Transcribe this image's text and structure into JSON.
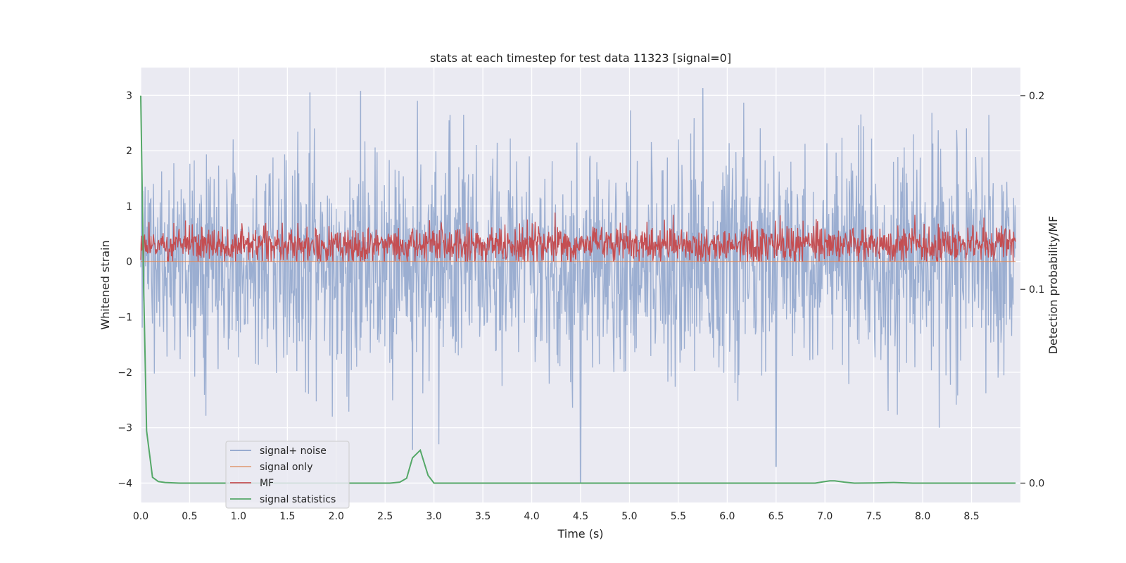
{
  "chart_data": {
    "type": "line",
    "title": "stats at each timestep for test data 11323 [signal=0]",
    "xlabel": "Time (s)",
    "ylabel": "Whitened strain",
    "y2label": "Detection probability/MF",
    "xlim": [
      0.0,
      9.0
    ],
    "ylim": [
      -4.35,
      3.5
    ],
    "y2lim": [
      -0.01,
      0.2145
    ],
    "xticks": [
      "0.0",
      "0.5",
      "1.0",
      "1.5",
      "2.0",
      "2.5",
      "3.0",
      "3.5",
      "4.0",
      "4.5",
      "5.0",
      "5.5",
      "6.0",
      "6.5",
      "7.0",
      "7.5",
      "8.0",
      "8.5"
    ],
    "yticks": [
      "3",
      "2",
      "1",
      "0",
      "−1",
      "−2",
      "−3",
      "−4"
    ],
    "y2ticks": [
      "0.2",
      "0.1",
      "0.0"
    ],
    "grid": true,
    "legend_position": "lower-left",
    "background": "#eaeaf2",
    "series": [
      {
        "name": "signal+ noise",
        "axis": "left",
        "color": "#4c72b0",
        "opacity": 0.5,
        "description_values": {
          "approx_envelope": [
            -2.2,
            2.2
          ],
          "notable_points": [
            [
              1.73,
              3.05
            ],
            [
              2.25,
              3.08
            ],
            [
              5.75,
              3.13
            ],
            [
              4.5,
              -4.0
            ],
            [
              6.5,
              -3.7
            ],
            [
              2.78,
              -3.4
            ],
            [
              3.05,
              -3.3
            ],
            [
              8.17,
              -3.0
            ],
            [
              1.96,
              -2.8
            ]
          ]
        }
      },
      {
        "name": "signal only",
        "axis": "left",
        "color": "#dd8452",
        "values_constant": 0.0
      },
      {
        "name": "MF",
        "axis": "left",
        "color": "#c44e52",
        "description_values": {
          "approx_range": [
            0.0,
            0.9
          ],
          "approx_mean": 0.3
        }
      },
      {
        "name": "signal statistics",
        "axis": "right",
        "color": "#55a868",
        "x": [
          0.0,
          0.03,
          0.06,
          0.12,
          0.18,
          0.25,
          0.4,
          1.0,
          2.0,
          2.55,
          2.65,
          2.72,
          2.78,
          2.86,
          2.94,
          3.0,
          3.1,
          4.0,
          5.0,
          6.0,
          6.9,
          7.0,
          7.05,
          7.1,
          7.2,
          7.3,
          7.5,
          7.7,
          7.9,
          8.5,
          8.95
        ],
        "y": [
          0.2,
          0.1,
          0.027,
          0.003,
          0.0008,
          0.0003,
          0.0,
          0.0,
          0.0,
          0.0,
          0.0005,
          0.0025,
          0.013,
          0.017,
          0.004,
          0.0,
          0.0,
          0.0,
          0.0,
          0.0,
          0.0,
          0.0008,
          0.0012,
          0.0012,
          0.0005,
          0.0,
          0.0001,
          0.0003,
          0.0,
          0.0,
          0.0
        ]
      }
    ]
  }
}
